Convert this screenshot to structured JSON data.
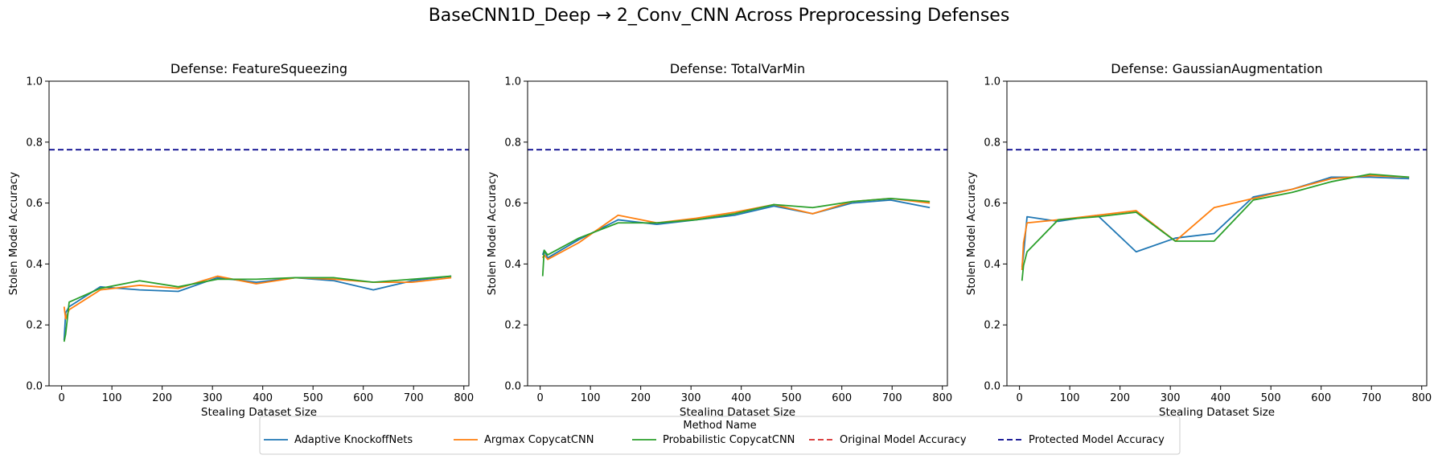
{
  "figure": {
    "title": "BaseCNN1D_Deep → 2_Conv_CNN Across Preprocessing Defenses"
  },
  "legend": {
    "title": "Method Name",
    "entries": [
      {
        "name": "Adaptive KnockoffNets",
        "color": "#1f77b4",
        "dash": "solid"
      },
      {
        "name": "Argmax CopycatCNN",
        "color": "#ff7f0e",
        "dash": "solid"
      },
      {
        "name": "Probabilistic CopycatCNN",
        "color": "#2ca02c",
        "dash": "solid"
      },
      {
        "name": "Original Model Accuracy",
        "color": "#d62728",
        "dash": "dashed"
      },
      {
        "name": "Protected Model Accuracy",
        "color": "#00008b",
        "dash": "dashed"
      }
    ]
  },
  "chart_data": [
    {
      "type": "line",
      "title": "Defense: FeatureSqueezing",
      "xlabel": "Stealing Dataset Size",
      "ylabel": "Stolen Model Accuracy",
      "xlim": [
        -25,
        810
      ],
      "ylim": [
        0,
        1
      ],
      "xticks": [
        0,
        100,
        200,
        300,
        400,
        500,
        600,
        700,
        800
      ],
      "yticks": [
        0.0,
        0.2,
        0.4,
        0.6,
        0.8,
        1.0
      ],
      "reference_lines": [
        {
          "name": "Protected Model Accuracy",
          "y": 0.775,
          "color": "#00008b"
        }
      ],
      "series": [
        {
          "name": "Adaptive KnockoffNets",
          "color": "#1f77b4",
          "x": [
            5,
            8,
            15,
            77,
            155,
            232,
            310,
            387,
            465,
            542,
            620,
            697,
            775
          ],
          "y": [
            0.15,
            0.24,
            0.26,
            0.325,
            0.315,
            0.31,
            0.355,
            0.34,
            0.355,
            0.345,
            0.315,
            0.345,
            0.36
          ]
        },
        {
          "name": "Argmax CopycatCNN",
          "color": "#ff7f0e",
          "x": [
            5,
            8,
            15,
            77,
            155,
            232,
            310,
            387,
            465,
            542,
            620,
            697,
            775
          ],
          "y": [
            0.26,
            0.22,
            0.25,
            0.315,
            0.33,
            0.32,
            0.36,
            0.335,
            0.355,
            0.35,
            0.34,
            0.34,
            0.355
          ]
        },
        {
          "name": "Probabilistic CopycatCNN",
          "color": "#2ca02c",
          "x": [
            5,
            8,
            15,
            77,
            155,
            232,
            310,
            387,
            465,
            542,
            620,
            697,
            775
          ],
          "y": [
            0.145,
            0.17,
            0.275,
            0.32,
            0.345,
            0.325,
            0.35,
            0.35,
            0.355,
            0.355,
            0.34,
            0.35,
            0.36
          ]
        }
      ]
    },
    {
      "type": "line",
      "title": "Defense: TotalVarMin",
      "xlabel": "Stealing Dataset Size",
      "ylabel": "Stolen Model Accuracy",
      "xlim": [
        -25,
        810
      ],
      "ylim": [
        0,
        1
      ],
      "xticks": [
        0,
        100,
        200,
        300,
        400,
        500,
        600,
        700,
        800
      ],
      "yticks": [
        0.0,
        0.2,
        0.4,
        0.6,
        0.8,
        1.0
      ],
      "reference_lines": [
        {
          "name": "Protected Model Accuracy",
          "y": 0.775,
          "color": "#00008b"
        }
      ],
      "series": [
        {
          "name": "Adaptive KnockoffNets",
          "color": "#1f77b4",
          "x": [
            5,
            8,
            15,
            77,
            155,
            232,
            310,
            387,
            465,
            542,
            620,
            697,
            775
          ],
          "y": [
            0.43,
            0.445,
            0.42,
            0.48,
            0.545,
            0.53,
            0.545,
            0.56,
            0.59,
            0.565,
            0.6,
            0.61,
            0.585
          ]
        },
        {
          "name": "Argmax CopycatCNN",
          "color": "#ff7f0e",
          "x": [
            5,
            8,
            15,
            77,
            155,
            232,
            310,
            387,
            465,
            542,
            620,
            697,
            775
          ],
          "y": [
            0.42,
            0.43,
            0.415,
            0.47,
            0.56,
            0.535,
            0.55,
            0.57,
            0.595,
            0.565,
            0.605,
            0.615,
            0.6
          ]
        },
        {
          "name": "Probabilistic CopycatCNN",
          "color": "#2ca02c",
          "x": [
            5,
            8,
            15,
            77,
            155,
            232,
            310,
            387,
            465,
            542,
            620,
            697,
            775
          ],
          "y": [
            0.36,
            0.445,
            0.43,
            0.485,
            0.535,
            0.535,
            0.545,
            0.565,
            0.595,
            0.585,
            0.605,
            0.615,
            0.605
          ]
        }
      ]
    },
    {
      "type": "line",
      "title": "Defense: GaussianAugmentation",
      "xlabel": "Stealing Dataset Size",
      "ylabel": "Stolen Model Accuracy",
      "xlim": [
        -25,
        810
      ],
      "ylim": [
        0,
        1
      ],
      "xticks": [
        0,
        100,
        200,
        300,
        400,
        500,
        600,
        700,
        800
      ],
      "yticks": [
        0.0,
        0.2,
        0.4,
        0.6,
        0.8,
        1.0
      ],
      "reference_lines": [
        {
          "name": "Protected Model Accuracy",
          "y": 0.775,
          "color": "#00008b"
        }
      ],
      "series": [
        {
          "name": "Adaptive KnockoffNets",
          "color": "#1f77b4",
          "x": [
            5,
            8,
            15,
            77,
            155,
            232,
            310,
            387,
            465,
            542,
            620,
            697,
            775
          ],
          "y": [
            0.39,
            0.43,
            0.555,
            0.54,
            0.56,
            0.44,
            0.485,
            0.5,
            0.62,
            0.645,
            0.685,
            0.685,
            0.68
          ]
        },
        {
          "name": "Argmax CopycatCNN",
          "color": "#ff7f0e",
          "x": [
            5,
            8,
            15,
            77,
            155,
            232,
            310,
            387,
            465,
            542,
            620,
            697,
            775
          ],
          "y": [
            0.38,
            0.47,
            0.535,
            0.545,
            0.56,
            0.575,
            0.475,
            0.585,
            0.615,
            0.645,
            0.68,
            0.69,
            0.685
          ]
        },
        {
          "name": "Probabilistic CopycatCNN",
          "color": "#2ca02c",
          "x": [
            5,
            8,
            15,
            77,
            155,
            232,
            310,
            387,
            465,
            542,
            620,
            697,
            775
          ],
          "y": [
            0.345,
            0.395,
            0.44,
            0.545,
            0.555,
            0.57,
            0.475,
            0.475,
            0.61,
            0.635,
            0.67,
            0.695,
            0.685
          ]
        }
      ]
    }
  ]
}
